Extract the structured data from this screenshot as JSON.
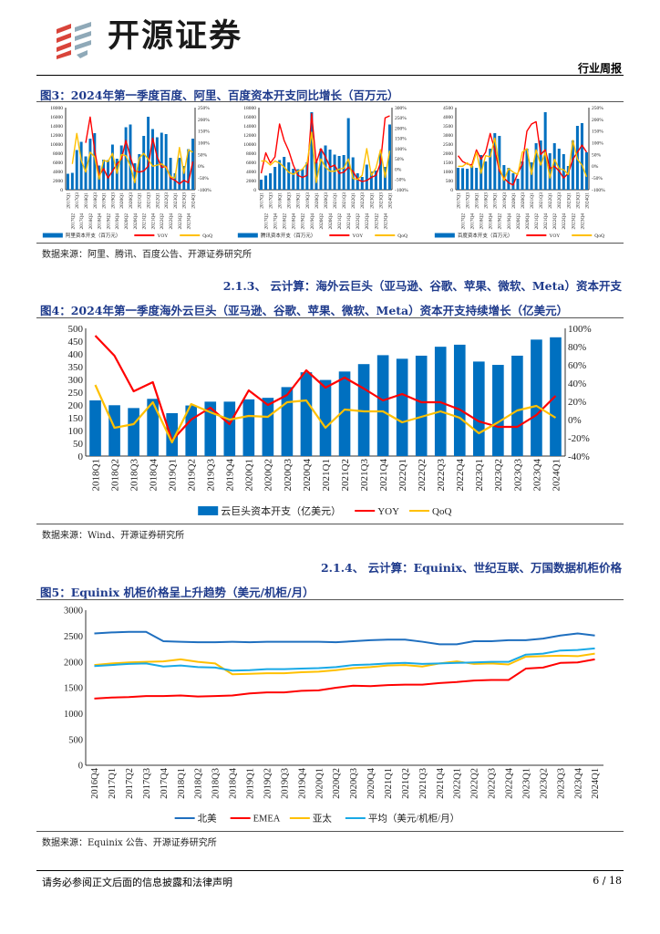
{
  "header": {
    "brand": "开源证券",
    "doc_type": "行业周报"
  },
  "fig3": {
    "title": "图3：2024年第一季度百度、阿里、百度资本开支同比增长（百万元）",
    "source": "数据来源：阿里、腾讯、百度公告、开源证券研究所",
    "charts": [
      {
        "type": "bar+line",
        "bar_series": "阿里资本开支（百万元）",
        "line_series": [
          "YOY",
          "QoQ"
        ],
        "ylim": [
          0,
          18000
        ],
        "yticks": [
          0,
          2000,
          4000,
          6000,
          8000,
          10000,
          12000,
          14000,
          16000,
          18000
        ],
        "y2lim": [
          -100,
          250
        ],
        "y2ticks": [
          "-100%",
          "-50%",
          "0%",
          "50%",
          "100%",
          "150%",
          "200%",
          "250%"
        ],
        "categories": [
          "2017Q1",
          "2017Q2",
          "2017Q3",
          "2017Q4",
          "2018Q1",
          "2018Q2",
          "2018Q3",
          "2018Q4",
          "2019Q1",
          "2019Q2",
          "2019Q3",
          "2019Q4",
          "2020Q1",
          "2020Q2",
          "2020Q3",
          "2020Q4",
          "2021Q1",
          "2021Q2",
          "2021Q3",
          "2021Q4",
          "2022Q1",
          "2022Q2",
          "2022Q3",
          "2022Q4",
          "2023Q1",
          "2023Q2",
          "2023Q3",
          "2023Q4",
          "2024Q1"
        ],
        "bars": [
          3500,
          3700,
          8700,
          10500,
          7300,
          11200,
          12400,
          5300,
          6600,
          6500,
          9900,
          6800,
          9700,
          13700,
          14300,
          5800,
          7800,
          11800,
          16000,
          13300,
          11500,
          12500,
          12200,
          7000,
          3600,
          7000,
          5200,
          8900,
          11200
        ],
        "yoy": [
          null,
          null,
          null,
          null,
          100,
          210,
          70,
          -40,
          -10,
          -50,
          -20,
          10,
          30,
          110,
          40,
          -20,
          -25,
          -20,
          0,
          120,
          40,
          -5,
          0,
          -50,
          -60,
          -75,
          -60,
          -70,
          20
        ],
        "qoq": [
          null,
          10,
          140,
          25,
          -25,
          60,
          40,
          -55,
          25,
          20,
          55,
          -30,
          50,
          45,
          0,
          -70,
          35,
          55,
          30,
          0,
          5,
          10,
          -5,
          -45,
          -50,
          80,
          -30,
          70,
          60
        ]
      },
      {
        "type": "bar+line",
        "bar_series": "腾讯资本开支（百万元）",
        "line_series": [
          "YOY",
          "QoQ"
        ],
        "ylim": [
          0,
          18000
        ],
        "yticks": [
          0,
          2000,
          4000,
          6000,
          8000,
          10000,
          12000,
          14000,
          16000,
          18000
        ],
        "y2lim": [
          -100,
          300
        ],
        "y2ticks": [
          "-100%",
          "-50%",
          "0%",
          "50%",
          "100%",
          "150%",
          "200%",
          "250%",
          "300%"
        ],
        "categories": [
          "2017Q1",
          "2017Q2",
          "2017Q3",
          "2017Q4",
          "2018Q1",
          "2018Q2",
          "2018Q3",
          "2018Q4",
          "2019Q1",
          "2019Q2",
          "2019Q3",
          "2019Q4",
          "2020Q1",
          "2020Q2",
          "2020Q3",
          "2020Q4",
          "2021Q1",
          "2021Q2",
          "2021Q3",
          "2021Q4",
          "2022Q1",
          "2022Q2",
          "2022Q3",
          "2022Q4",
          "2023Q1",
          "2023Q2",
          "2023Q3",
          "2023Q4",
          "2024Q1"
        ],
        "bars": [
          2200,
          3100,
          3600,
          5000,
          6500,
          7200,
          6000,
          4600,
          4500,
          4500,
          6000,
          17000,
          6100,
          9000,
          9700,
          8800,
          7700,
          7400,
          7600,
          15700,
          7100,
          3600,
          2800,
          5500,
          4000,
          4200,
          8000,
          5000,
          14300
        ],
        "yoy": [
          -20,
          80,
          30,
          60,
          220,
          140,
          90,
          20,
          -30,
          -40,
          -30,
          270,
          30,
          100,
          60,
          10,
          20,
          -20,
          -15,
          10,
          -10,
          -50,
          -60,
          -55,
          -40,
          -30,
          30,
          250,
          260
        ],
        "qoq": [
          40,
          40,
          20,
          40,
          30,
          10,
          -15,
          -25,
          -10,
          0,
          30,
          180,
          -65,
          50,
          10,
          -10,
          -10,
          0,
          5,
          50,
          -45,
          -50,
          -30,
          100,
          -30,
          5,
          95,
          -40,
          90
        ]
      },
      {
        "type": "bar+line",
        "bar_series": "百度资本开支（百万元）",
        "line_series": [
          "YOY",
          "QoQ"
        ],
        "ylim": [
          0,
          4500
        ],
        "yticks": [
          0,
          500,
          1000,
          1500,
          2000,
          2500,
          3000,
          3500,
          4000,
          4500
        ],
        "y2lim": [
          -100,
          250
        ],
        "y2ticks": [
          "-100%",
          "-50%",
          "0%",
          "50%",
          "100%",
          "150%",
          "200%",
          "250%"
        ],
        "categories": [
          "2017Q1",
          "2017Q2",
          "2017Q3",
          "2017Q4",
          "2018Q1",
          "2018Q2",
          "2018Q3",
          "2018Q4",
          "2019Q1",
          "2019Q2",
          "2019Q3",
          "2019Q4",
          "2020Q1",
          "2020Q2",
          "2020Q3",
          "2020Q4",
          "2021Q1",
          "2021Q2",
          "2021Q3",
          "2021Q4",
          "2022Q1",
          "2022Q2",
          "2022Q3",
          "2022Q4",
          "2023Q1",
          "2023Q2",
          "2023Q3",
          "2023Q4",
          "2024Q1"
        ],
        "bars": [
          1200,
          1180,
          1150,
          1300,
          1200,
          1900,
          1550,
          2250,
          3100,
          2950,
          1350,
          1200,
          900,
          600,
          1550,
          2250,
          1500,
          2550,
          2700,
          4250,
          2000,
          2550,
          2250,
          1950,
          1300,
          2700,
          3500,
          3650,
          2050
        ],
        "yoy": [
          45,
          20,
          10,
          5,
          70,
          30,
          60,
          140,
          70,
          -20,
          -50,
          -70,
          -80,
          -30,
          10,
          150,
          180,
          190,
          50,
          70,
          -10,
          0,
          -20,
          -50,
          -30,
          30,
          60,
          90,
          60
        ],
        "qoq": [
          0,
          0,
          15,
          -5,
          60,
          -30,
          45,
          40,
          120,
          -5,
          -60,
          -10,
          -25,
          -35,
          60,
          75,
          -35,
          70,
          5,
          60,
          -50,
          30,
          -10,
          -15,
          -35,
          110,
          30,
          5,
          -45
        ]
      }
    ]
  },
  "sec213": {
    "heading": "2.1.3、 云计算：海外云巨头（亚马逊、谷歌、苹果、微软、Meta）资本开支"
  },
  "fig4": {
    "title": "图4：2024年第一季度海外云巨头（亚马逊、谷歌、苹果、微软、Meta）资本开支持续增长（亿美元）",
    "source": "数据来源：Wind、开源证券研究所"
  },
  "sec214": {
    "heading": "2.1.4、 云计算：Equinix、世纪互联、万国数据机柜价格"
  },
  "fig5": {
    "title": "图5：Equinix 机柜价格呈上升趋势（美元/机柜/月）",
    "source": "数据来源：Equinix 公告、开源证券研究所"
  },
  "chart_data": [
    {
      "type": "bar+line",
      "title": "图4：2024年第一季度海外云巨头（亚马逊、谷歌、苹果、微软、Meta）资本开支持续增长（亿美元）",
      "categories": [
        "2018Q1",
        "2018Q2",
        "2018Q3",
        "2018Q4",
        "2019Q1",
        "2019Q2",
        "2019Q3",
        "2019Q4",
        "2020Q1",
        "2020Q2",
        "2020Q3",
        "2020Q4",
        "2021Q1",
        "2021Q2",
        "2021Q3",
        "2021Q4",
        "2022Q1",
        "2022Q2",
        "2022Q3",
        "2022Q4",
        "2023Q1",
        "2023Q2",
        "2023Q3",
        "2023Q4",
        "2024Q1"
      ],
      "ylim": [
        0,
        500
      ],
      "yticks": [
        0,
        50,
        100,
        150,
        200,
        250,
        300,
        350,
        400,
        450,
        500
      ],
      "y2lim": [
        -40,
        100
      ],
      "y2ticks": [
        "-40%",
        "-20%",
        "0%",
        "20%",
        "40%",
        "60%",
        "80%",
        "100%"
      ],
      "legend": "bottom",
      "series": [
        {
          "name": "云巨头资本开支（亿美元）",
          "kind": "bar",
          "axis": "left",
          "color": "#0070c0",
          "values": [
            218,
            199,
            188,
            224,
            168,
            198,
            213,
            213,
            222,
            228,
            270,
            328,
            298,
            331,
            360,
            395,
            381,
            393,
            428,
            436,
            370,
            357,
            393,
            456,
            465
          ]
        },
        {
          "name": "YOY",
          "kind": "line",
          "axis": "right",
          "color": "#ff0000",
          "values": [
            92,
            70,
            31,
            41,
            -23,
            0,
            13,
            -5,
            32,
            16,
            27,
            54,
            35,
            46,
            34,
            21,
            28,
            19,
            19,
            11,
            -2,
            -8,
            -8,
            5,
            26
          ]
        },
        {
          "name": "QoQ",
          "kind": "line",
          "axis": "right",
          "color": "#ffc000",
          "values": [
            38,
            -9,
            -5,
            19,
            -25,
            17,
            8,
            0,
            4,
            3,
            19,
            21,
            -9,
            11,
            9,
            9,
            -3,
            3,
            9,
            2,
            -15,
            -3,
            10,
            15,
            2
          ]
        }
      ]
    },
    {
      "type": "line",
      "title": "图5：Equinix 机柜价格呈上升趋势（美元/机柜/月）",
      "categories": [
        "2016Q4",
        "2017Q1",
        "2017Q2",
        "2017Q3",
        "2017Q4",
        "2018Q1",
        "2018Q2",
        "2018Q3",
        "2018Q4",
        "2019Q1",
        "2019Q2",
        "2019Q3",
        "2019Q4",
        "2020Q1",
        "2020Q2",
        "2020Q3",
        "2020Q4",
        "2021Q1",
        "2021Q2",
        "2021Q3",
        "2021Q4",
        "2022Q1",
        "2022Q2",
        "2022Q3",
        "2022Q4",
        "2023Q1",
        "2023Q2",
        "2023Q3",
        "2023Q4",
        "2024Q1"
      ],
      "ylim": [
        0,
        3000
      ],
      "yticks": [
        0,
        500,
        1000,
        1500,
        2000,
        2500,
        3000
      ],
      "legend": "bottom",
      "series": [
        {
          "name": "北美",
          "color": "#1f6fbf",
          "values": [
            2550,
            2570,
            2580,
            2580,
            2400,
            2390,
            2380,
            2380,
            2390,
            2380,
            2390,
            2390,
            2390,
            2390,
            2380,
            2400,
            2420,
            2430,
            2430,
            2390,
            2340,
            2340,
            2400,
            2400,
            2420,
            2420,
            2450,
            2510,
            2550,
            2510
          ]
        },
        {
          "name": "EMEA",
          "color": "#ff0000",
          "values": [
            1290,
            1310,
            1320,
            1340,
            1340,
            1350,
            1330,
            1340,
            1350,
            1390,
            1410,
            1410,
            1440,
            1450,
            1500,
            1540,
            1530,
            1550,
            1560,
            1560,
            1590,
            1610,
            1640,
            1650,
            1650,
            1870,
            1890,
            1980,
            1990,
            2050
          ]
        },
        {
          "name": "亚太",
          "color": "#ffc000",
          "values": [
            1940,
            1970,
            1990,
            2000,
            2010,
            2050,
            2000,
            1970,
            1760,
            1770,
            1780,
            1780,
            1800,
            1810,
            1840,
            1880,
            1900,
            1930,
            1940,
            1910,
            1970,
            2010,
            1960,
            1970,
            1950,
            2100,
            2110,
            2120,
            2110,
            2160
          ]
        },
        {
          "name": "平均（美元/机柜/月）",
          "color": "#19a9e6",
          "values": [
            1920,
            1940,
            1960,
            1970,
            1910,
            1930,
            1900,
            1890,
            1830,
            1840,
            1860,
            1860,
            1870,
            1880,
            1900,
            1940,
            1950,
            1970,
            1980,
            1960,
            1970,
            1980,
            1990,
            2000,
            2000,
            2140,
            2160,
            2220,
            2230,
            2260
          ]
        }
      ]
    }
  ],
  "footer": {
    "disclaimer": "请务必参阅正文后面的信息披露和法律声明",
    "page": "6 / 18"
  }
}
